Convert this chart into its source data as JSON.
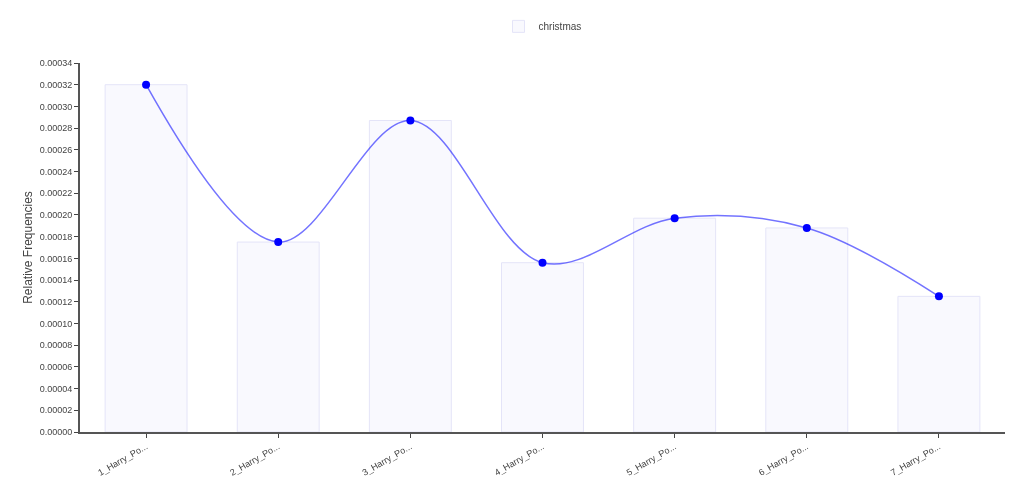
{
  "chart_data": {
    "type": "bar",
    "ylabel": "Relative Frequencies",
    "categories": [
      "1_Harry_Po...",
      "2_Harry_Po...",
      "3_Harry_Po...",
      "4_Harry_Po...",
      "5_Harry_Po...",
      "6_Harry_Po...",
      "7_Harry_Po..."
    ],
    "series": [
      {
        "name": "christmas",
        "color": "#f9f9fe",
        "values": [
          0.00032,
          0.000175,
          0.000287,
          0.000156,
          0.000197,
          0.000188,
          0.000125
        ]
      },
      {
        "type": "line",
        "color": "#0000ff",
        "marker": "circle",
        "values": [
          0.00032,
          0.000175,
          0.000287,
          0.000156,
          0.000197,
          0.000188,
          0.000125
        ]
      }
    ],
    "ylim": [
      0,
      0.00034
    ],
    "yticks": [
      {
        "value": 0,
        "label": "0.00000"
      },
      {
        "value": 2e-05,
        "label": "0.00002"
      },
      {
        "value": 4e-05,
        "label": "0.00004"
      },
      {
        "value": 6e-05,
        "label": "0.00006"
      },
      {
        "value": 8e-05,
        "label": "0.00008"
      },
      {
        "value": 0.0001,
        "label": "0.00010"
      },
      {
        "value": 0.00012,
        "label": "0.00012"
      },
      {
        "value": 0.00014,
        "label": "0.00014"
      },
      {
        "value": 0.00016,
        "label": "0.00016"
      },
      {
        "value": 0.00018,
        "label": "0.00018"
      },
      {
        "value": 0.0002,
        "label": "0.00020"
      },
      {
        "value": 0.00022,
        "label": "0.00022"
      },
      {
        "value": 0.00024,
        "label": "0.00024"
      },
      {
        "value": 0.00026,
        "label": "0.00026"
      },
      {
        "value": 0.00028,
        "label": "0.00028"
      },
      {
        "value": 0.0003,
        "label": "0.00030"
      },
      {
        "value": 0.00032,
        "label": "0.00032"
      },
      {
        "value": 0.00034,
        "label": "0.00034"
      }
    ],
    "legend": "top"
  }
}
